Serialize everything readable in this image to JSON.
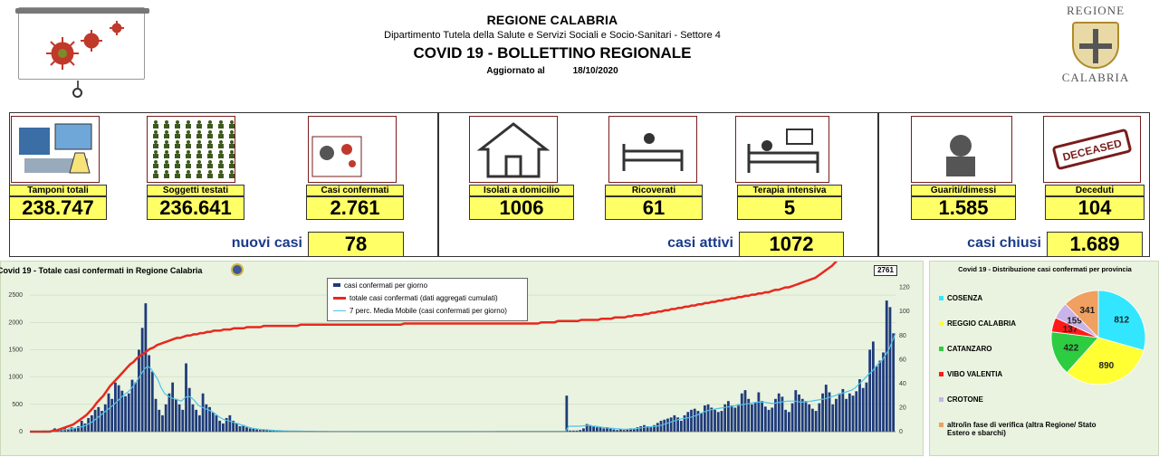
{
  "header": {
    "region": "REGIONE CALABRIA",
    "department": "Dipartimento Tutela della Salute e Servizi Sociali e Socio-Sanitari - Settore 4",
    "title": "COVID 19 - BOLLETTINO REGIONALE",
    "updated_label": "Aggiornato al",
    "updated_date": "18/10/2020",
    "logo_top": "REGIONE",
    "logo_bottom": "CALABRIA"
  },
  "stats": {
    "tamponi": {
      "label": "Tamponi totali",
      "value": "238.747"
    },
    "soggetti": {
      "label": "Soggetti testati",
      "value": "236.641"
    },
    "confermati": {
      "label": "Casi confermati",
      "value": "2.761"
    },
    "isolati": {
      "label": "Isolati a domicilio",
      "value": "1006"
    },
    "ricoverati": {
      "label": "Ricoverati",
      "value": "61"
    },
    "terapia": {
      "label": "Terapia intensiva",
      "value": "5"
    },
    "guariti": {
      "label": "Guariti/dimessi",
      "value": "1.585"
    },
    "deceduti": {
      "label": "Deceduti",
      "value": "104"
    },
    "deceased_stamp": "DECEASED"
  },
  "summary": {
    "nuovi_label": "nuovi casi",
    "nuovi_value": "78",
    "attivi_label": "casi attivi",
    "attivi_value": "1072",
    "chiusi_label": "casi chiusi",
    "chiusi_value": "1.689"
  },
  "colors": {
    "daily_bar": "#1f3b7a",
    "cumulative": "#e8281f",
    "moving_avg": "#4fc3e8",
    "label_yellow": "#ffff66"
  },
  "chart_data": [
    {
      "type": "bar",
      "title": "Covid 19 - Totale casi confermati in Regione Calabria",
      "y_left_ticks": [
        0,
        500,
        1000,
        1500,
        2000,
        2500
      ],
      "y_left_ylim": [
        0,
        2750
      ],
      "y_right_ticks": [
        0,
        20,
        40,
        60,
        80,
        100,
        120
      ],
      "y_right_ylim": [
        0,
        125
      ],
      "last_label": "2761",
      "series": [
        {
          "name": "casi confermati per giorno",
          "style": "bar",
          "values": [
            5,
            5,
            8,
            8,
            20,
            10,
            20,
            60,
            15,
            30,
            60,
            40,
            80,
            70,
            100,
            200,
            150,
            250,
            300,
            400,
            450,
            380,
            500,
            700,
            600,
            900,
            850,
            750,
            650,
            700,
            950,
            900,
            1500,
            1900,
            2350,
            1400,
            1100,
            600,
            400,
            300,
            500,
            700,
            900,
            600,
            500,
            400,
            1250,
            800,
            500,
            400,
            300,
            700,
            500,
            450,
            350,
            300,
            200,
            150,
            250,
            300,
            200,
            150,
            100,
            120,
            80,
            60,
            50,
            40,
            30,
            40,
            25,
            20,
            20,
            15,
            15,
            10,
            10,
            10,
            10,
            10,
            8,
            8,
            6,
            6,
            5,
            5,
            5,
            5,
            5,
            5,
            3,
            5,
            3,
            3,
            3,
            3,
            2,
            2,
            2,
            2,
            2,
            2,
            2,
            2,
            2,
            2,
            2,
            2,
            2,
            2,
            2,
            2,
            2,
            2,
            2,
            2,
            2,
            2,
            2,
            2,
            2,
            2,
            2,
            2,
            2,
            2,
            2,
            2,
            2,
            2,
            2,
            3,
            3,
            3,
            3,
            4,
            4,
            4,
            5,
            5,
            6,
            6,
            5,
            5,
            5,
            5,
            5,
            5,
            5,
            5,
            5,
            5,
            5,
            5,
            5,
            5,
            5,
            5,
            5,
            660,
            20,
            20,
            20,
            30,
            60,
            140,
            120,
            100,
            80,
            80,
            60,
            80,
            60,
            40,
            30,
            50,
            30,
            40,
            60,
            60,
            80,
            100,
            120,
            100,
            80,
            120,
            160,
            200,
            220,
            240,
            260,
            300,
            260,
            200,
            300,
            360,
            400,
            420,
            380,
            340,
            480,
            500,
            440,
            400,
            360,
            380,
            500,
            560,
            480,
            440,
            500,
            700,
            760,
            600,
            500,
            540,
            720,
            560,
            460,
            400,
            440,
            600,
            700,
            640,
            400,
            360,
            520,
            760,
            680,
            600,
            560,
            500,
            420,
            380,
            520,
            700,
            860,
            720,
            500,
            600,
            700,
            780,
            600,
            700,
            660,
            740,
            960,
            800,
            900,
            1500,
            1650,
            1200,
            1300,
            1450,
            2400,
            2280,
            1800
          ]
        },
        {
          "name": "totale casi confermati (dati aggregati cumulati)",
          "style": "line",
          "axis": "right",
          "values": [
            0,
            0,
            0,
            0,
            0,
            0,
            0,
            1,
            1,
            2,
            3,
            4,
            5,
            6,
            8,
            10,
            12,
            14,
            17,
            20,
            24,
            27,
            30,
            34,
            38,
            41,
            44,
            47,
            50,
            53,
            56,
            58,
            61,
            63,
            65,
            67,
            69,
            70,
            72,
            73,
            74,
            75,
            76,
            77,
            78,
            78,
            79,
            80,
            80,
            81,
            81,
            82,
            82,
            83,
            83,
            84,
            84,
            84,
            85,
            85,
            85,
            86,
            86,
            86,
            86,
            87,
            87,
            87,
            87,
            87,
            88,
            88,
            88,
            88,
            88,
            88,
            88,
            88,
            88,
            88,
            88,
            89,
            89,
            89,
            89,
            89,
            89,
            89,
            89,
            89,
            89,
            89,
            89,
            89,
            89,
            89,
            89,
            89,
            89,
            89,
            89,
            89,
            89,
            89,
            89,
            89,
            89,
            89,
            89,
            89,
            89,
            89,
            90,
            90,
            90,
            90,
            90,
            90,
            90,
            90,
            90,
            90,
            90,
            90,
            90,
            90,
            90,
            90,
            90,
            90,
            90,
            90,
            90,
            90,
            90,
            90,
            90,
            90,
            90,
            90,
            90,
            90,
            90,
            90,
            90,
            90,
            90,
            90,
            90,
            90,
            90,
            90,
            90,
            91,
            91,
            91,
            91,
            91,
            92,
            92,
            92,
            92,
            92,
            92,
            92,
            93,
            93,
            93,
            93,
            93,
            93,
            94,
            94,
            94,
            94,
            95,
            95,
            95,
            95,
            96,
            96,
            97,
            97,
            97,
            98,
            98,
            99,
            99,
            100,
            100,
            101,
            101,
            102,
            102,
            103,
            103,
            104,
            104,
            105,
            105,
            106,
            106,
            107,
            107,
            108,
            108,
            109,
            109,
            110,
            110,
            111,
            111,
            112,
            112,
            113,
            113,
            114,
            114,
            115,
            115,
            116,
            116,
            117,
            118,
            118,
            119,
            120,
            120,
            121,
            122,
            123,
            124,
            125,
            126,
            127,
            128,
            130,
            132,
            134,
            136,
            138,
            141,
            144,
            148,
            152,
            157,
            164,
            172,
            180,
            190,
            200,
            212,
            222,
            232,
            242,
            252,
            262,
            274,
            284,
            296
          ]
        },
        {
          "name": "7 perc. Media Mobile (casi confermati per giorno)",
          "style": "line",
          "values": [
            5,
            5,
            6,
            8,
            10,
            12,
            15,
            20,
            25,
            30,
            35,
            40,
            50,
            60,
            70,
            85,
            100,
            130,
            160,
            200,
            250,
            300,
            350,
            400,
            450,
            500,
            560,
            620,
            680,
            720,
            780,
            860,
            950,
            1050,
            1150,
            1200,
            1150,
            1050,
            950,
            800,
            700,
            650,
            620,
            600,
            580,
            560,
            620,
            650,
            620,
            560,
            480,
            450,
            420,
            400,
            370,
            330,
            280,
            240,
            210,
            200,
            180,
            160,
            140,
            120,
            100,
            80,
            65,
            55,
            45,
            40,
            35,
            30,
            25,
            20,
            18,
            15,
            13,
            12,
            11,
            10,
            9,
            8,
            7,
            6,
            6,
            5,
            5,
            5,
            5,
            4,
            4,
            4,
            3,
            3,
            3,
            3,
            2,
            2,
            2,
            2,
            2,
            2,
            2,
            2,
            2,
            2,
            2,
            2,
            2,
            2,
            2,
            2,
            2,
            2,
            2,
            2,
            2,
            2,
            2,
            2,
            2,
            2,
            2,
            2,
            2,
            2,
            2,
            2,
            2,
            2,
            2,
            2,
            3,
            3,
            3,
            3,
            4,
            4,
            4,
            5,
            5,
            5,
            5,
            5,
            5,
            5,
            5,
            5,
            5,
            5,
            5,
            5,
            5,
            5,
            5,
            5,
            5,
            5,
            5,
            5,
            100,
            100,
            100,
            100,
            105,
            110,
            120,
            100,
            100,
            90,
            80,
            70,
            65,
            60,
            55,
            50,
            45,
            45,
            45,
            50,
            55,
            65,
            75,
            85,
            90,
            95,
            100,
            110,
            130,
            150,
            170,
            190,
            210,
            230,
            240,
            250,
            260,
            280,
            300,
            330,
            360,
            380,
            400,
            410,
            420,
            430,
            440,
            450,
            460,
            470,
            480,
            490,
            500,
            510,
            520,
            530,
            540,
            540,
            540,
            530,
            520,
            520,
            530,
            540,
            550,
            560,
            560,
            560,
            550,
            540,
            540,
            550,
            560,
            570,
            580,
            590,
            600,
            620,
            640,
            660,
            680,
            700,
            720,
            740,
            760,
            800,
            860,
            920,
            980,
            1050,
            1100,
            1180,
            1250,
            1300,
            1400,
            1500,
            1650,
            1800
          ]
        }
      ],
      "legend": [
        "casi confermati per giorno",
        "totale casi confermati (dati aggregati cumulati)",
        "7 perc. Media Mobile (casi confermati per giorno)"
      ]
    },
    {
      "type": "pie",
      "title": "Covid 19 - Distribuzione casi confermati per provincia",
      "slices": [
        {
          "label": "COSENZA",
          "value": 812,
          "color": "#33e6ff"
        },
        {
          "label": "REGGIO CALABRIA",
          "value": 890,
          "color": "#ffff33"
        },
        {
          "label": "CATANZARO",
          "value": 422,
          "color": "#2ecc40"
        },
        {
          "label": "VIBO VALENTIA",
          "value": 137,
          "color": "#ff1a1a"
        },
        {
          "label": "CROTONE",
          "value": 159,
          "color": "#c8b4e8"
        },
        {
          "label": "altro/in fase di verifica (altra Regione/ Stato Estero e sbarchi)",
          "value": 341,
          "color": "#f0a060"
        }
      ]
    }
  ]
}
